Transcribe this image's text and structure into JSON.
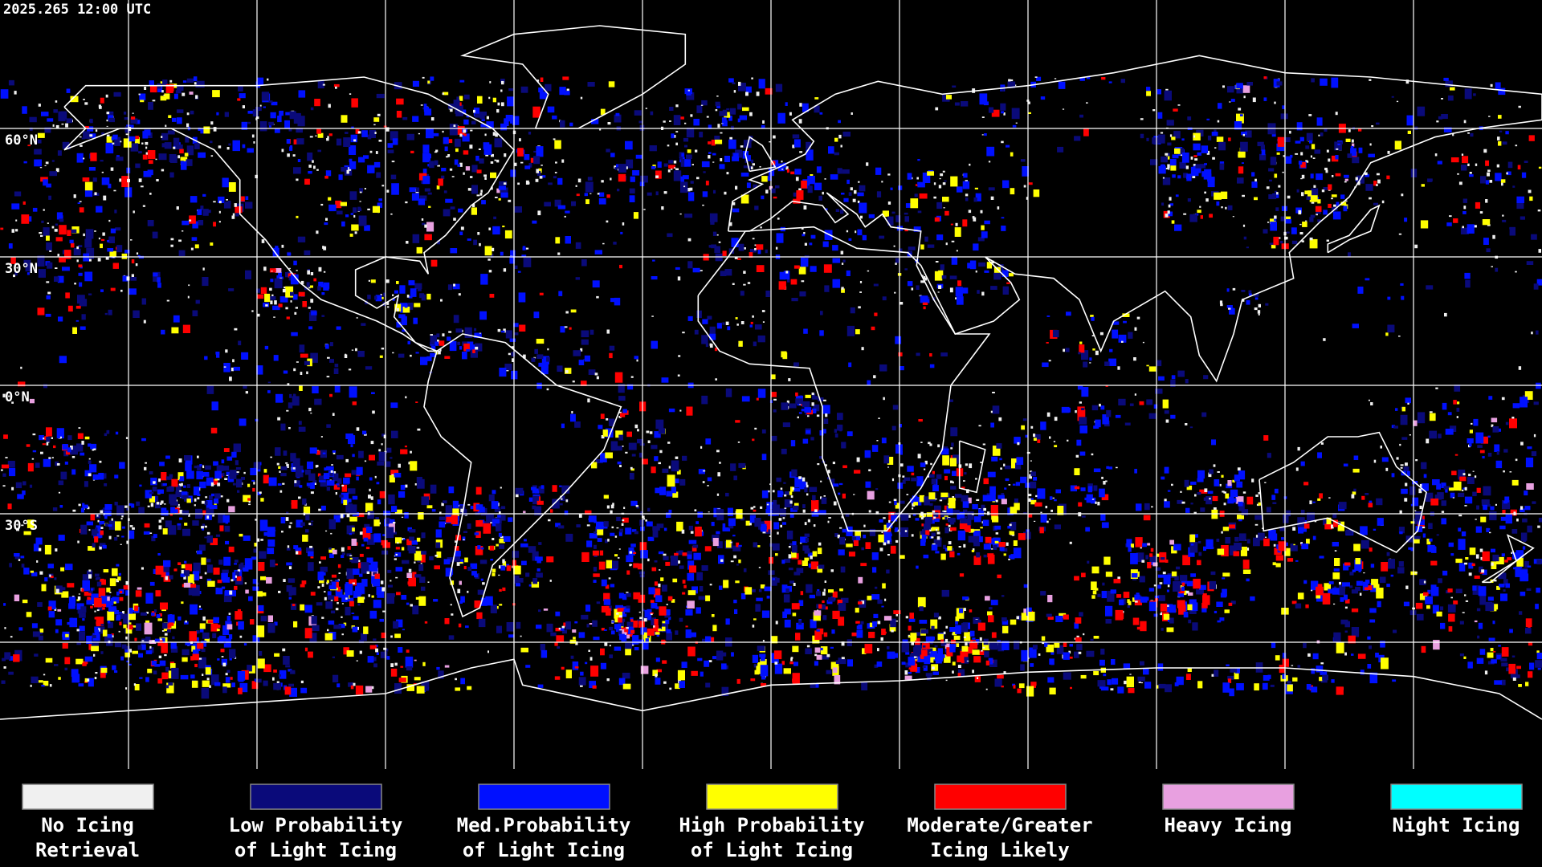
{
  "header": {
    "timestamp": "2025.265 12:00 UTC"
  },
  "map": {
    "latitude_labels": [
      "60°N",
      "30°N",
      "0°N",
      "30°S"
    ]
  },
  "legend": {
    "items": [
      {
        "color": "#f0f0f0",
        "line1": "No Icing",
        "line2": "Retrieval"
      },
      {
        "color": "#0a0a7a",
        "line1": "Low Probability",
        "line2": "of Light Icing"
      },
      {
        "color": "#0010ff",
        "line1": "Med.Probability",
        "line2": "of Light Icing"
      },
      {
        "color": "#ffff00",
        "line1": "High Probability",
        "line2": "of Light Icing"
      },
      {
        "color": "#ff0000",
        "line1": "Moderate/Greater",
        "line2": "Icing Likely"
      },
      {
        "color": "#e8a0e0",
        "line1": "Heavy Icing",
        "line2": ""
      },
      {
        "color": "#00ffff",
        "line1": "Night Icing",
        "line2": ""
      }
    ]
  }
}
